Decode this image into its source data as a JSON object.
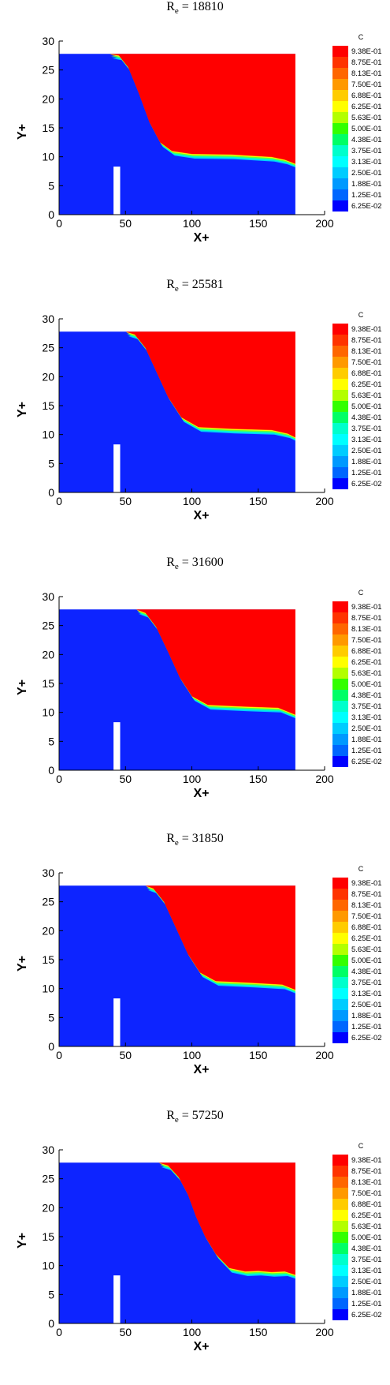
{
  "chart_data": [
    {
      "type": "heatmap",
      "title": {
        "re_symbol": "R",
        "re_sub": "e",
        "eq": " = ",
        "value": "18810"
      },
      "xlabel": "X+",
      "ylabel": "Y+",
      "xlim": [
        0,
        200
      ],
      "ylim": [
        0,
        30
      ],
      "xticks": [
        "0",
        "50",
        "100",
        "150",
        "200"
      ],
      "yticks": [
        "0",
        "5",
        "10",
        "15",
        "20",
        "25",
        "30"
      ],
      "legend": {
        "title": "C",
        "levels": [
          "9.38E-01",
          "8.75E-01",
          "8.13E-01",
          "7.50E-01",
          "6.88E-01",
          "6.25E-01",
          "5.63E-01",
          "5.00E-01",
          "4.38E-01",
          "3.75E-01",
          "3.13E-01",
          "2.50E-01",
          "1.88E-01",
          "1.25E-01",
          "6.25E-02"
        ],
        "placement": "right"
      },
      "domain": {
        "x_end": 178,
        "top_y": 27.8,
        "obstacle": {
          "x": [
            41,
            46
          ],
          "y": [
            0,
            8.3
          ]
        }
      },
      "interface": [
        [
          0,
          27.8
        ],
        [
          38,
          27.8
        ],
        [
          45,
          27.5
        ],
        [
          52,
          25.5
        ],
        [
          60,
          21
        ],
        [
          68,
          16
        ],
        [
          76,
          12.5
        ],
        [
          85,
          11
        ],
        [
          100,
          10.5
        ],
        [
          130,
          10.4
        ],
        [
          160,
          10
        ],
        [
          170,
          9.5
        ],
        [
          178,
          8.8
        ]
      ]
    },
    {
      "type": "heatmap",
      "title": {
        "re_symbol": "R",
        "re_sub": "e",
        "eq": " = ",
        "value": "25581"
      },
      "xlabel": "X+",
      "ylabel": "Y+",
      "xlim": [
        0,
        200
      ],
      "ylim": [
        0,
        30
      ],
      "xticks": [
        "0",
        "50",
        "100",
        "150",
        "200"
      ],
      "yticks": [
        "0",
        "5",
        "10",
        "15",
        "20",
        "25",
        "30"
      ],
      "legend": {
        "title": "C",
        "levels": [
          "9.38E-01",
          "8.75E-01",
          "8.13E-01",
          "7.50E-01",
          "6.88E-01",
          "6.25E-01",
          "5.63E-01",
          "5.00E-01",
          "4.38E-01",
          "3.75E-01",
          "3.13E-01",
          "2.50E-01",
          "1.88E-01",
          "1.25E-01",
          "6.25E-02"
        ],
        "placement": "right"
      },
      "domain": {
        "x_end": 178,
        "top_y": 27.8,
        "obstacle": {
          "x": [
            41,
            46
          ],
          "y": [
            0,
            8.3
          ]
        }
      },
      "interface": [
        [
          0,
          27.8
        ],
        [
          50,
          27.8
        ],
        [
          57,
          27.3
        ],
        [
          65,
          25
        ],
        [
          73,
          21
        ],
        [
          82,
          16.5
        ],
        [
          92,
          13
        ],
        [
          105,
          11.3
        ],
        [
          130,
          11
        ],
        [
          160,
          10.8
        ],
        [
          172,
          10.2
        ],
        [
          178,
          9.5
        ]
      ]
    },
    {
      "type": "heatmap",
      "title": {
        "re_symbol": "R",
        "re_sub": "e",
        "eq": " = ",
        "value": "31600"
      },
      "xlabel": "X+",
      "ylabel": "Y+",
      "xlim": [
        0,
        200
      ],
      "ylim": [
        0,
        30
      ],
      "xticks": [
        "0",
        "50",
        "100",
        "150",
        "200"
      ],
      "yticks": [
        "0",
        "5",
        "10",
        "15",
        "20",
        "25",
        "30"
      ],
      "legend": {
        "title": "C",
        "levels": [
          "9.38E-01",
          "8.75E-01",
          "8.13E-01",
          "7.50E-01",
          "6.88E-01",
          "6.25E-01",
          "5.63E-01",
          "5.00E-01",
          "4.38E-01",
          "3.75E-01",
          "3.13E-01",
          "2.50E-01",
          "1.88E-01",
          "1.25E-01",
          "6.25E-02"
        ],
        "placement": "right"
      },
      "domain": {
        "x_end": 178,
        "top_y": 27.8,
        "obstacle": {
          "x": [
            41,
            46
          ],
          "y": [
            0,
            8.3
          ]
        }
      },
      "interface": [
        [
          0,
          27.8
        ],
        [
          58,
          27.8
        ],
        [
          65,
          27.2
        ],
        [
          73,
          24.8
        ],
        [
          82,
          20.5
        ],
        [
          91,
          16
        ],
        [
          100,
          12.8
        ],
        [
          112,
          11.3
        ],
        [
          140,
          11
        ],
        [
          165,
          10.8
        ],
        [
          178,
          9.6
        ]
      ]
    },
    {
      "type": "heatmap",
      "title": {
        "re_symbol": "R",
        "re_sub": "e",
        "eq": " = ",
        "value": "31850"
      },
      "xlabel": "X+",
      "ylabel": "Y+",
      "xlim": [
        0,
        200
      ],
      "ylim": [
        0,
        30
      ],
      "xticks": [
        "0",
        "50",
        "100",
        "150",
        "200"
      ],
      "yticks": [
        "0",
        "5",
        "10",
        "15",
        "20",
        "25",
        "30"
      ],
      "legend": {
        "title": "C",
        "levels": [
          "9.38E-01",
          "8.75E-01",
          "8.13E-01",
          "7.50E-01",
          "6.88E-01",
          "6.25E-01",
          "5.63E-01",
          "5.00E-01",
          "4.38E-01",
          "3.75E-01",
          "3.13E-01",
          "2.50E-01",
          "1.88E-01",
          "1.25E-01",
          "6.25E-02"
        ],
        "placement": "right"
      },
      "domain": {
        "x_end": 178,
        "top_y": 27.8,
        "obstacle": {
          "x": [
            41,
            46
          ],
          "y": [
            0,
            8.3
          ]
        }
      },
      "interface": [
        [
          0,
          27.8
        ],
        [
          65,
          27.8
        ],
        [
          71,
          27.3
        ],
        [
          79,
          25
        ],
        [
          88,
          20.5
        ],
        [
          97,
          16
        ],
        [
          106,
          12.8
        ],
        [
          118,
          11.3
        ],
        [
          145,
          11
        ],
        [
          168,
          10.7
        ],
        [
          178,
          9.8
        ]
      ]
    },
    {
      "type": "heatmap",
      "title": {
        "re_symbol": "R",
        "re_sub": "e",
        "eq": " = ",
        "value": "57250"
      },
      "xlabel": "X+",
      "ylabel": "Y+",
      "xlim": [
        0,
        200
      ],
      "ylim": [
        0,
        30
      ],
      "xticks": [
        "0",
        "50",
        "100",
        "150",
        "200"
      ],
      "yticks": [
        "0",
        "5",
        "10",
        "15",
        "20",
        "25",
        "30"
      ],
      "legend": {
        "title": "C",
        "levels": [
          "9.38E-01",
          "8.75E-01",
          "8.13E-01",
          "7.50E-01",
          "6.88E-01",
          "6.25E-01",
          "5.63E-01",
          "5.00E-01",
          "4.38E-01",
          "3.75E-01",
          "3.13E-01",
          "2.50E-01",
          "1.88E-01",
          "1.25E-01",
          "6.25E-02"
        ],
        "placement": "right"
      },
      "domain": {
        "x_end": 178,
        "top_y": 27.8,
        "obstacle": {
          "x": [
            41,
            46
          ],
          "y": [
            0,
            8.3
          ]
        }
      },
      "interface": [
        [
          0,
          27.8
        ],
        [
          75,
          27.8
        ],
        [
          82,
          27.3
        ],
        [
          90,
          25.3
        ],
        [
          97,
          22.3
        ],
        [
          103,
          18.5
        ],
        [
          110,
          15
        ],
        [
          118,
          12
        ],
        [
          128,
          9.6
        ],
        [
          140,
          9
        ],
        [
          150,
          9.1
        ],
        [
          160,
          8.9
        ],
        [
          170,
          9
        ],
        [
          178,
          8.4
        ]
      ]
    }
  ],
  "colors": {
    "palette": [
      "#ff0000",
      "#ff3300",
      "#ff6600",
      "#ff9900",
      "#ffcc00",
      "#ffff00",
      "#b3ff00",
      "#33ff00",
      "#00ff66",
      "#00ffcc",
      "#00ffff",
      "#00ccff",
      "#0099ff",
      "#0066ff",
      "#0000ff"
    ],
    "domain_blue": "#0d24ff",
    "domain_red": "#ff0000"
  }
}
